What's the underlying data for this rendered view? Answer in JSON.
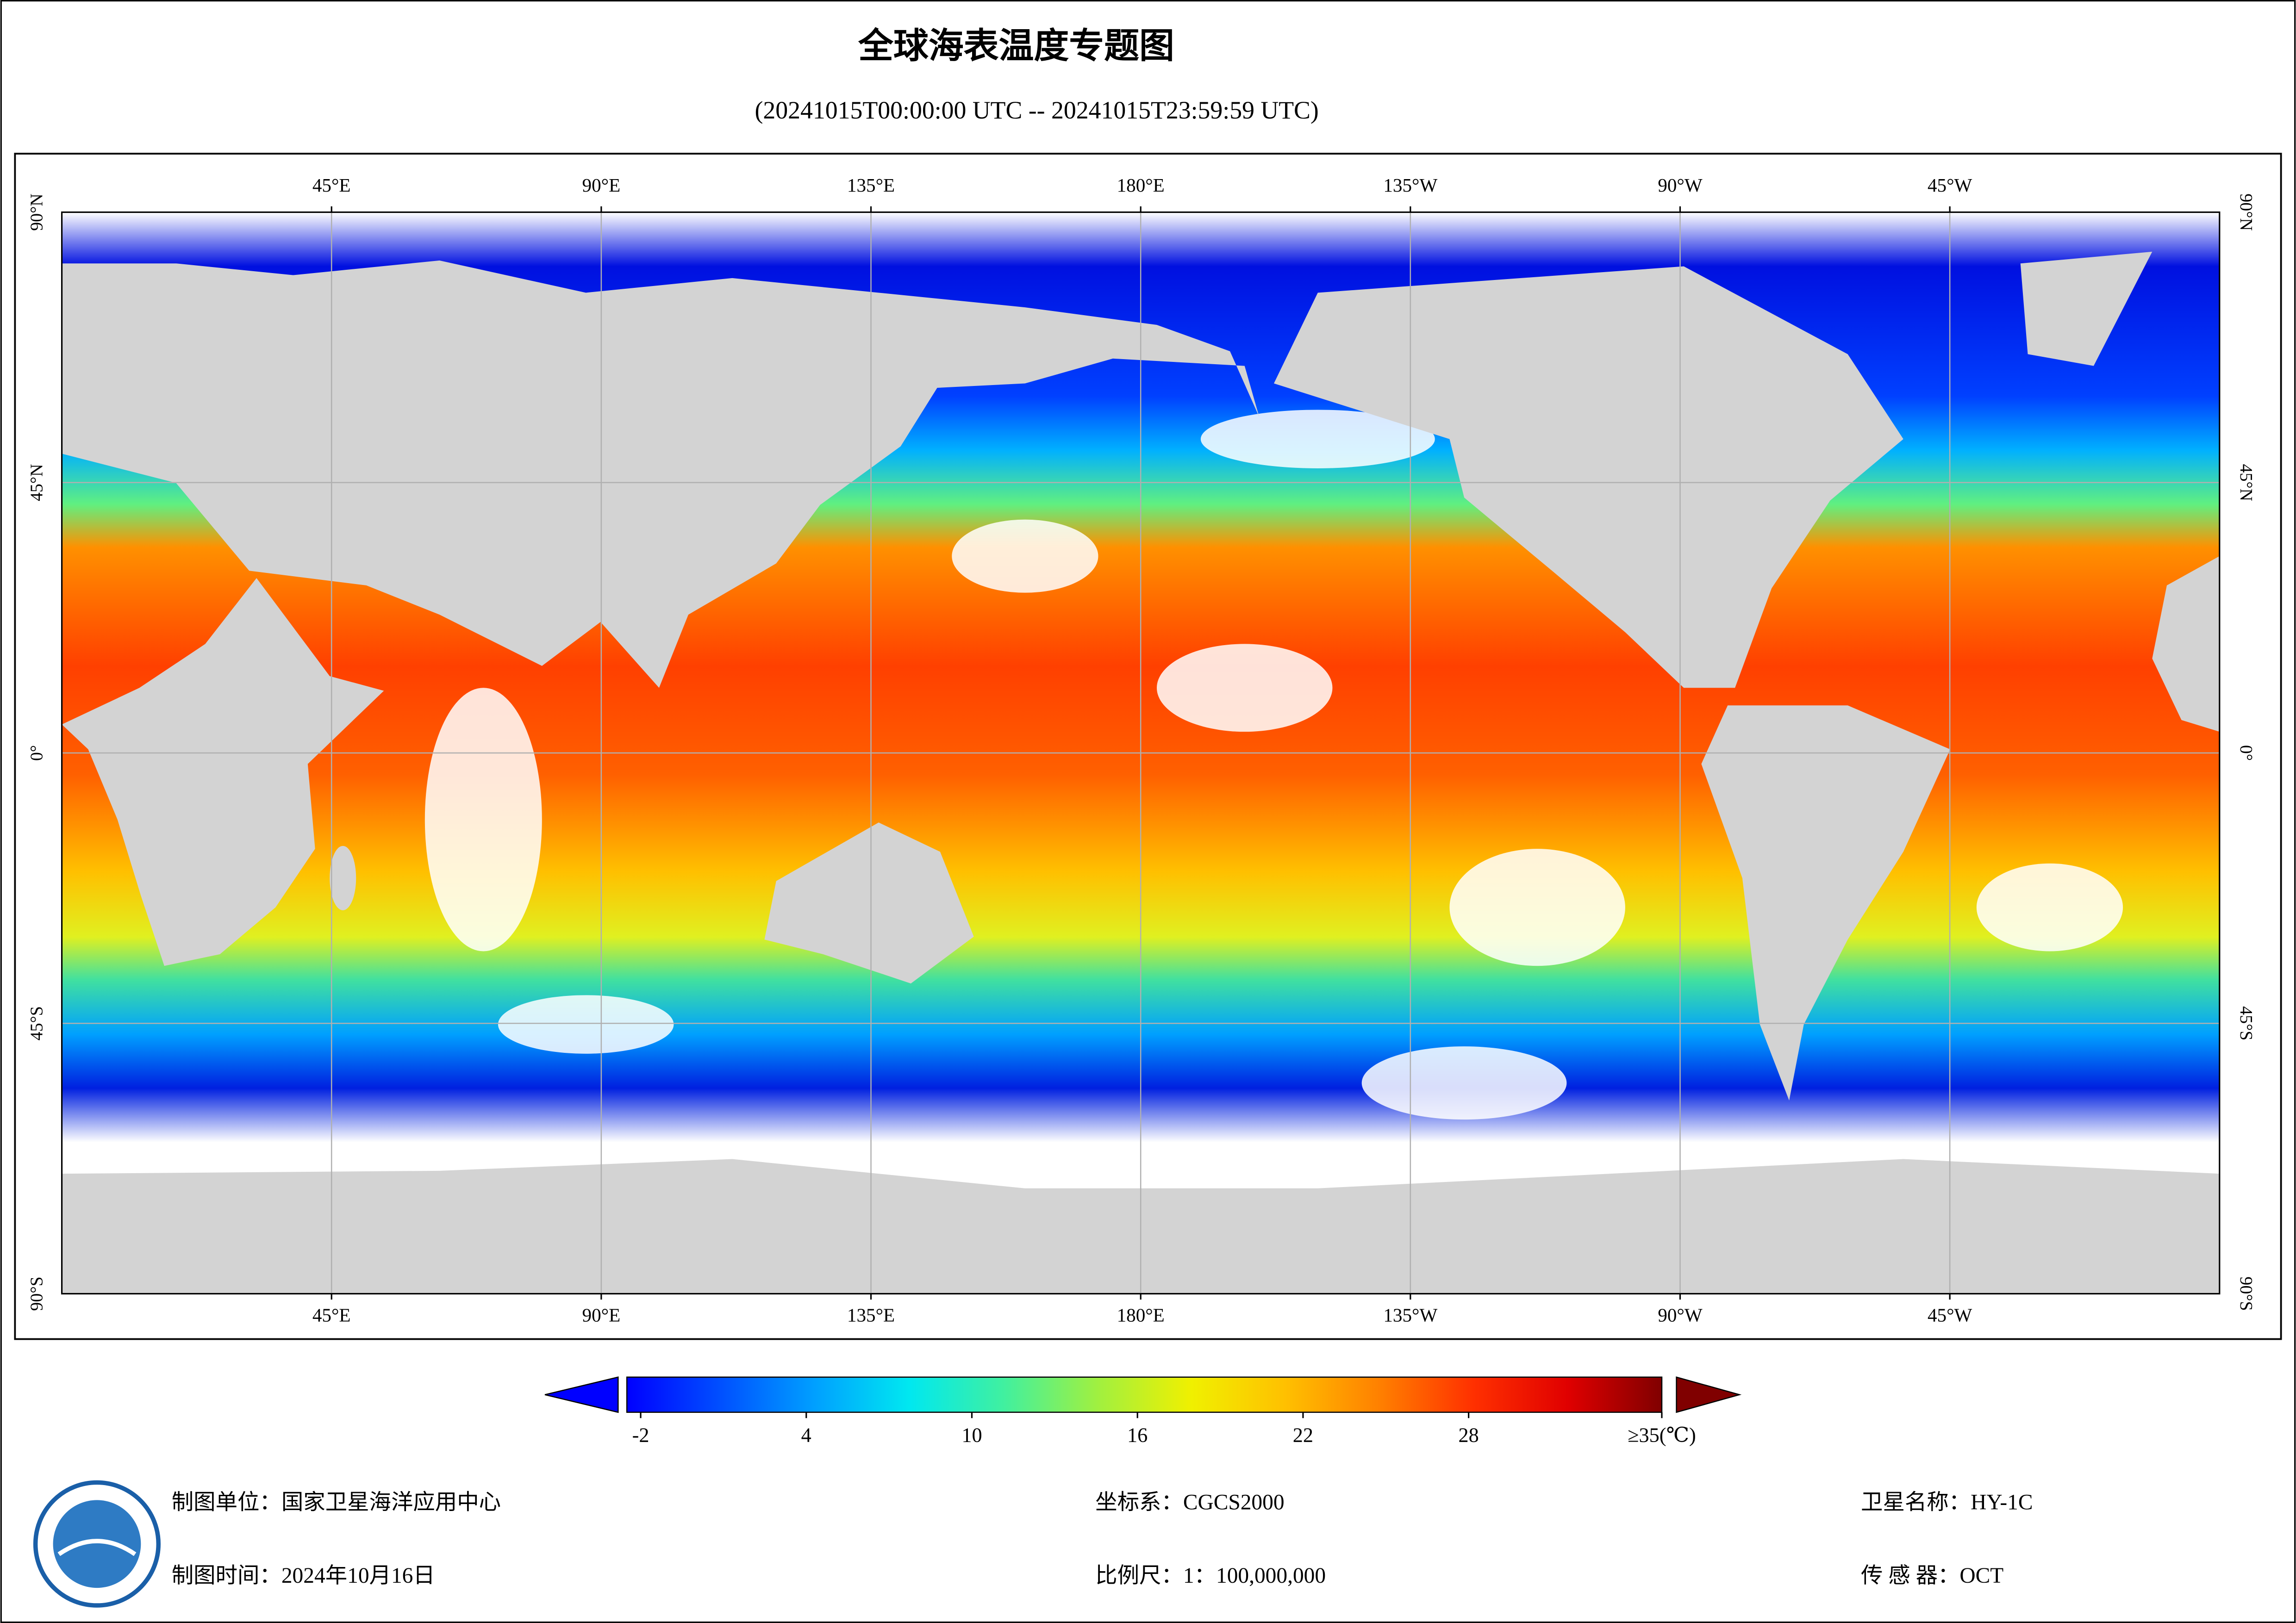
{
  "header": {
    "title": "全球海表温度专题图",
    "subtitle": "(20241015T00:00:00 UTC -- 20241015T23:59:59 UTC)"
  },
  "map": {
    "xlim": [
      0,
      360
    ],
    "ylim": [
      -90,
      90
    ],
    "grid": true,
    "lon_ticks": [
      {
        "value": 45,
        "label": "45°E"
      },
      {
        "value": 90,
        "label": "90°E"
      },
      {
        "value": 135,
        "label": "135°E"
      },
      {
        "value": 180,
        "label": "180°E"
      },
      {
        "value": 225,
        "label": "135°W"
      },
      {
        "value": 270,
        "label": "90°W"
      },
      {
        "value": 315,
        "label": "45°W"
      }
    ],
    "lat_ticks": [
      {
        "value": 90,
        "label": "90°N"
      },
      {
        "value": 45,
        "label": "45°N"
      },
      {
        "value": 0,
        "label": "0°"
      },
      {
        "value": -45,
        "label": "45°S"
      },
      {
        "value": -90,
        "label": "90°S"
      }
    ]
  },
  "colorbar": {
    "lim": [
      -2.5,
      35
    ],
    "ticks": [
      -2,
      4,
      10,
      16,
      22,
      28,
      {
        "value": 35,
        "label": "≥35(℃)"
      }
    ],
    "colors": [
      "#0000ff",
      "#0050ff",
      "#00a0ff",
      "#00e8f0",
      "#40f0a0",
      "#a0f040",
      "#f0f000",
      "#ffc000",
      "#ff8000",
      "#ff3000",
      "#e00000",
      "#800000"
    ]
  },
  "footer": {
    "unit": "制图单位：国家卫星海洋应用中心",
    "time": "制图时间：2024年10月16日",
    "crs": "坐标系：CGCS2000",
    "scale": "比例尺：1：100,000,000",
    "satellite": "卫星名称：HY-1C",
    "sensor": "传 感 器：OCT"
  }
}
